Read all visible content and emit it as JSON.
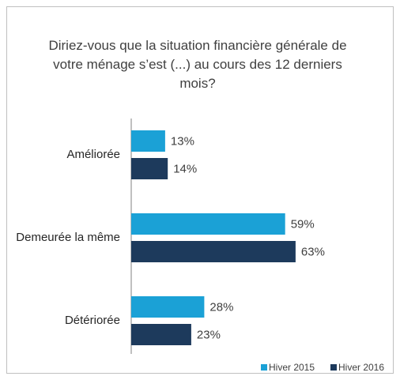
{
  "chart_data": {
    "type": "bar",
    "orientation": "horizontal",
    "title": "Diriez-vous que la situation financière générale de votre ménage s’est (...) au cours des 12 derniers mois?",
    "categories": [
      "Améliorée",
      "Demeurée la même",
      "Détériorée"
    ],
    "series": [
      {
        "name": "Hiver 2015",
        "color": "#1ba1d6",
        "values": [
          13,
          59,
          28
        ],
        "value_labels": [
          "13%",
          "59%",
          "28%"
        ]
      },
      {
        "name": "Hiver 2016",
        "color": "#1d3a5c",
        "values": [
          14,
          63,
          23
        ],
        "value_labels": [
          "14%",
          "63%",
          "23%"
        ]
      }
    ],
    "legend": "bottom-right"
  }
}
